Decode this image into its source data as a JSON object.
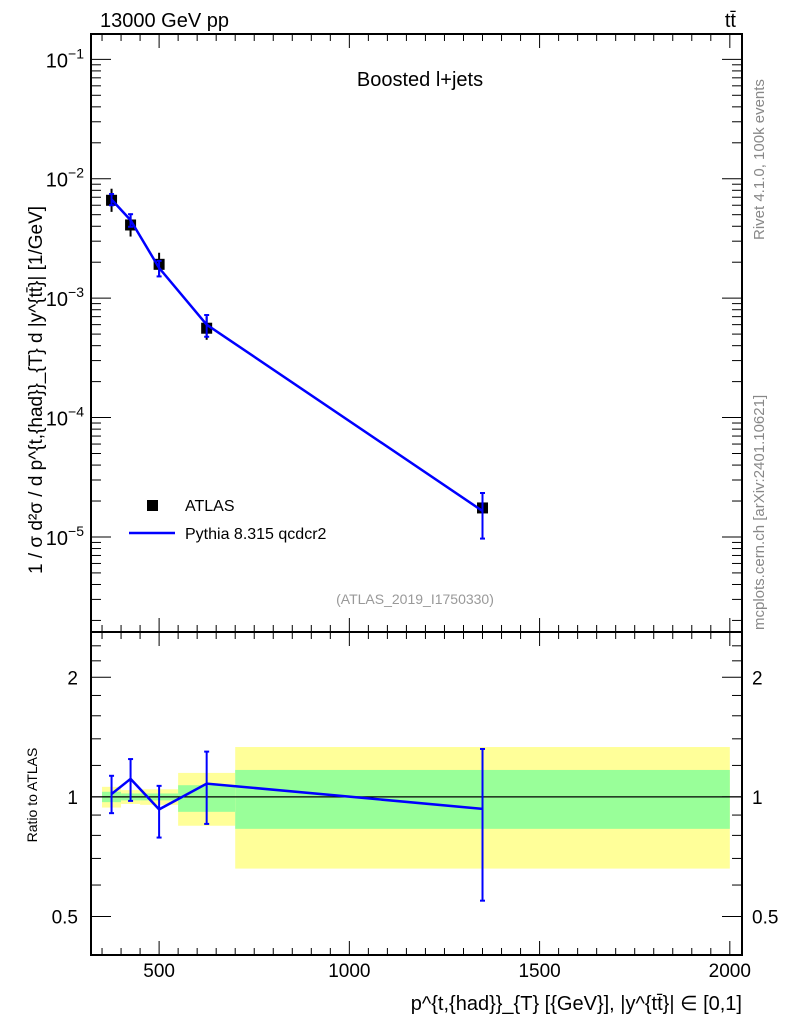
{
  "header": {
    "left": "13000 GeV pp",
    "right": "tt̄"
  },
  "side_text": {
    "top": "Rivet 4.1.0,  100k events",
    "bottom": "mcplots.cern.ch [arXiv:2401.10621]"
  },
  "chart_data": [
    {
      "type": "line",
      "title": "Boosted l+jets",
      "analysis_label": "(ATLAS_2019_I1750330)",
      "ylabel": "1 / σ d²σ / d p^{t,{had}}_{T} d |y^{tt̄}| [1/GeV]",
      "yscale": "log",
      "ylim": [
        1.6e-06,
        0.163
      ],
      "xlim": [
        321,
        2032
      ],
      "ytick_labels": [
        "10^-1",
        "10^-2",
        "10^-3",
        "10^-4",
        "10^-5"
      ],
      "ytick_values": [
        0.1,
        0.01,
        0.001,
        0.0001,
        1e-05
      ],
      "legend": {
        "placement": "bottom-left",
        "entries": [
          "ATLAS",
          "Pythia 8.315 qcdcr2"
        ]
      },
      "bins": [
        [
          350,
          400
        ],
        [
          400,
          450
        ],
        [
          450,
          550
        ],
        [
          550,
          700
        ],
        [
          700,
          2000
        ]
      ],
      "x": [
        375,
        425,
        500,
        625,
        1350
      ],
      "series": [
        {
          "name": "ATLAS",
          "values": [
            0.0066,
            0.0041,
            0.00192,
            0.00056,
            1.75e-05
          ],
          "color": "#000000"
        },
        {
          "name": "Pythia 8.315 qcdcr2",
          "values": [
            0.0067,
            0.0045,
            0.00179,
            0.0006,
            1.65e-05
          ],
          "color": "#0000ff"
        }
      ]
    },
    {
      "type": "line",
      "ylabel": "Ratio to ATLAS",
      "xlabel": "p^{t,{had}}_{T} [{GeV}], |y^{tt̄}| ∈ [0,1]",
      "yscale": "log",
      "ylim": [
        0.4,
        2.6
      ],
      "xlim": [
        321,
        2032
      ],
      "ytick_labels": [
        "0.5",
        "1",
        "2"
      ],
      "ytick_values": [
        0.5,
        1,
        2
      ],
      "xtick_labels": [
        "500",
        "1000",
        "1500",
        "2000"
      ],
      "xtick_values": [
        500,
        1000,
        1500,
        2000
      ],
      "bins": [
        [
          350,
          400
        ],
        [
          400,
          450
        ],
        [
          450,
          550
        ],
        [
          550,
          700
        ],
        [
          700,
          2000
        ]
      ],
      "x": [
        375,
        425,
        500,
        625,
        1350
      ],
      "data_band_stat": {
        "low": [
          0.97,
          0.98,
          0.98,
          0.917,
          0.831
        ],
        "high": [
          1.03,
          1.02,
          1.02,
          1.07,
          1.169
        ],
        "color": "#99ff99"
      },
      "data_band_total": {
        "low": [
          0.94,
          0.96,
          0.955,
          0.846,
          0.66
        ],
        "high": [
          1.06,
          1.04,
          1.045,
          1.149,
          1.335
        ],
        "color": "#ffff99"
      },
      "series": [
        {
          "name": "Pythia 8.315 qcdcr2",
          "values": [
            1.017,
            1.11,
            0.93,
            1.08,
            0.933
          ],
          "err_low": [
            0.91,
            0.977,
            0.79,
            0.855,
            0.548
          ],
          "err_high": [
            1.13,
            1.245,
            1.066,
            1.3,
            1.32
          ],
          "color": "#0000ff"
        }
      ]
    }
  ]
}
